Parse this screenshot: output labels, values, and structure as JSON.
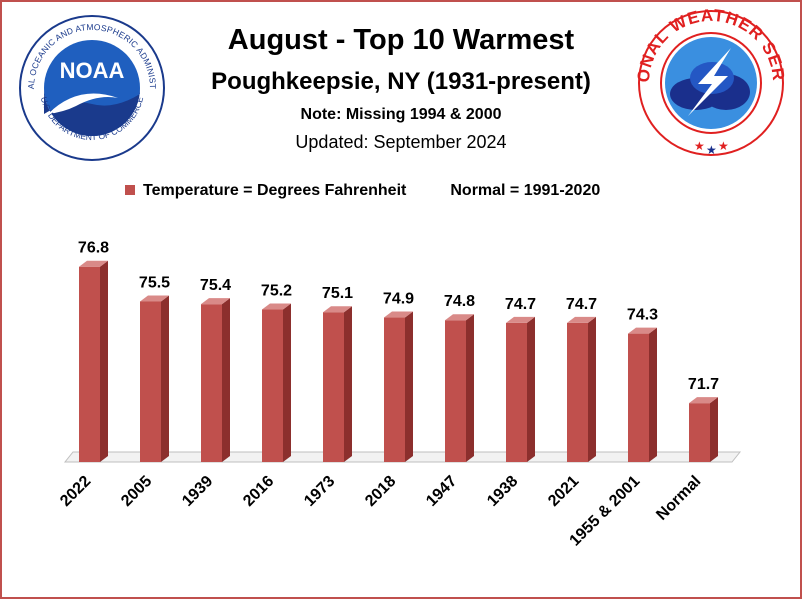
{
  "header": {
    "title": "August - Top 10 Warmest",
    "subtitle": "Poughkeepsie, NY (1931-present)",
    "note": "Note: Missing 1994 & 2000",
    "updated": "Updated:  September 2024"
  },
  "logos": {
    "noaa_text": "NOAA",
    "noaa_ring": "NATIONAL OCEANIC AND ATMOSPHERIC ADMINISTRATION",
    "noaa_ring_bottom": "U.S. DEPARTMENT OF COMMERCE",
    "nws_ring": "NATIONAL WEATHER SERVICE"
  },
  "legend": {
    "series_label": "Temperature = Degrees Fahrenheit",
    "normal_label": "Normal = 1991-2020"
  },
  "colors": {
    "bar": "#c0504d",
    "bar_side": "#8c2f2d",
    "bar_top": "#d98a88",
    "border": "#c0504d"
  },
  "chart_data": {
    "type": "bar",
    "title": "August - Top 10 Warmest",
    "categories": [
      "2022",
      "2005",
      "1939",
      "2016",
      "1973",
      "2018",
      "1947",
      "1938",
      "2021",
      "1955 & 2001",
      "Normal"
    ],
    "series": [
      {
        "name": "Temperature = Degrees Fahrenheit",
        "values": [
          76.8,
          75.5,
          75.4,
          75.2,
          75.1,
          74.9,
          74.8,
          74.7,
          74.7,
          74.3,
          71.7
        ]
      }
    ],
    "data_labels": [
      "76.8",
      "75.5",
      "75.4",
      "75.2",
      "75.1",
      "74.9",
      "74.8",
      "74.7",
      "74.7",
      "74.3",
      "71.7"
    ],
    "ylim": [
      69.5,
      77.5
    ],
    "grid": false,
    "legend_position": "top"
  }
}
